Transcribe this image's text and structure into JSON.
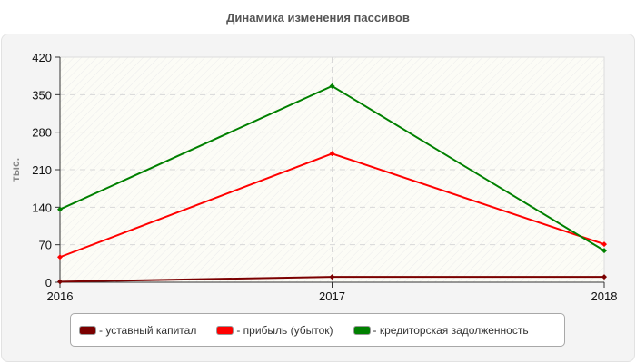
{
  "title": "Динамика изменения пассивов",
  "colors": {
    "series_0": "#7b0000",
    "series_1": "#ff0000",
    "series_2": "#008000",
    "panel_bg": "#f4f4f4",
    "plot_bg": "#fcfcf6"
  },
  "legend": {
    "items": [
      {
        "label": "- уставный капитал",
        "color": "#7b0000"
      },
      {
        "label": "- прибыль (убыток)",
        "color": "#ff0000"
      },
      {
        "label": "- кредиторская задолженность",
        "color": "#008000"
      }
    ]
  },
  "chart_data": {
    "type": "line",
    "title": "Динамика изменения пассивов",
    "xlabel": "",
    "ylabel": "тыс.",
    "categories": [
      "2016",
      "2017",
      "2018"
    ],
    "y_ticks": [
      "0",
      "70",
      "140",
      "210",
      "280",
      "350",
      "420"
    ],
    "ylim": [
      0,
      420
    ],
    "grid": true,
    "legend_position": "bottom",
    "series": [
      {
        "name": "уставный капитал",
        "color": "#7b0000",
        "values": [
          1,
          10,
          10
        ]
      },
      {
        "name": "прибыль (убыток)",
        "color": "#ff0000",
        "values": [
          47,
          240,
          71
        ]
      },
      {
        "name": "кредиторская задолженность",
        "color": "#008000",
        "values": [
          136,
          366,
          59
        ]
      }
    ]
  }
}
